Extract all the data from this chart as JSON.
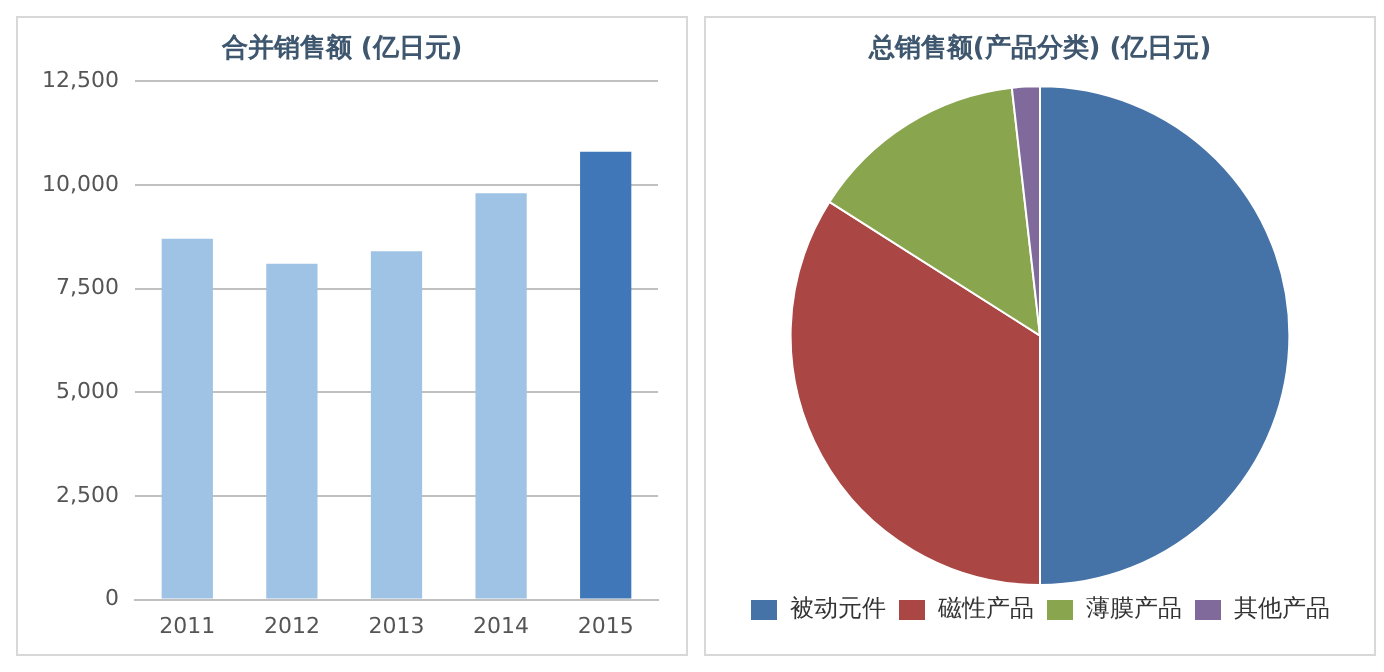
{
  "chart_data": [
    {
      "type": "bar",
      "title": "合并销售额 (亿日元)",
      "categories": [
        "2011",
        "2012",
        "2013",
        "2014",
        "2015"
      ],
      "values": [
        8700,
        8100,
        8400,
        9800,
        10800
      ],
      "colors": [
        "#9fc3e4",
        "#9fc3e4",
        "#9fc3e4",
        "#9fc3e4",
        "#3f77b8"
      ],
      "ylim": [
        0,
        12500
      ],
      "yticks": [
        0,
        {
          "value": 2500,
          "label": "2,500"
        },
        {
          "value": 5000,
          "label": "5,000"
        },
        {
          "value": 7500,
          "label": "7,500"
        },
        {
          "value": 10000,
          "label": "10,000"
        },
        {
          "value": 12500,
          "label": "12,500"
        }
      ],
      "grid": "y",
      "legend": false
    },
    {
      "type": "pie",
      "title": "总销售额(产品分类) (亿日元)",
      "categories": [
        "被动元件",
        "磁性产品",
        "薄膜产品",
        "其他产品"
      ],
      "values": [
        50,
        34,
        14.2,
        1.8
      ],
      "colors": [
        "#4572a7",
        "#aa4643",
        "#89a54e",
        "#80699b"
      ],
      "legend": "bottom"
    }
  ]
}
